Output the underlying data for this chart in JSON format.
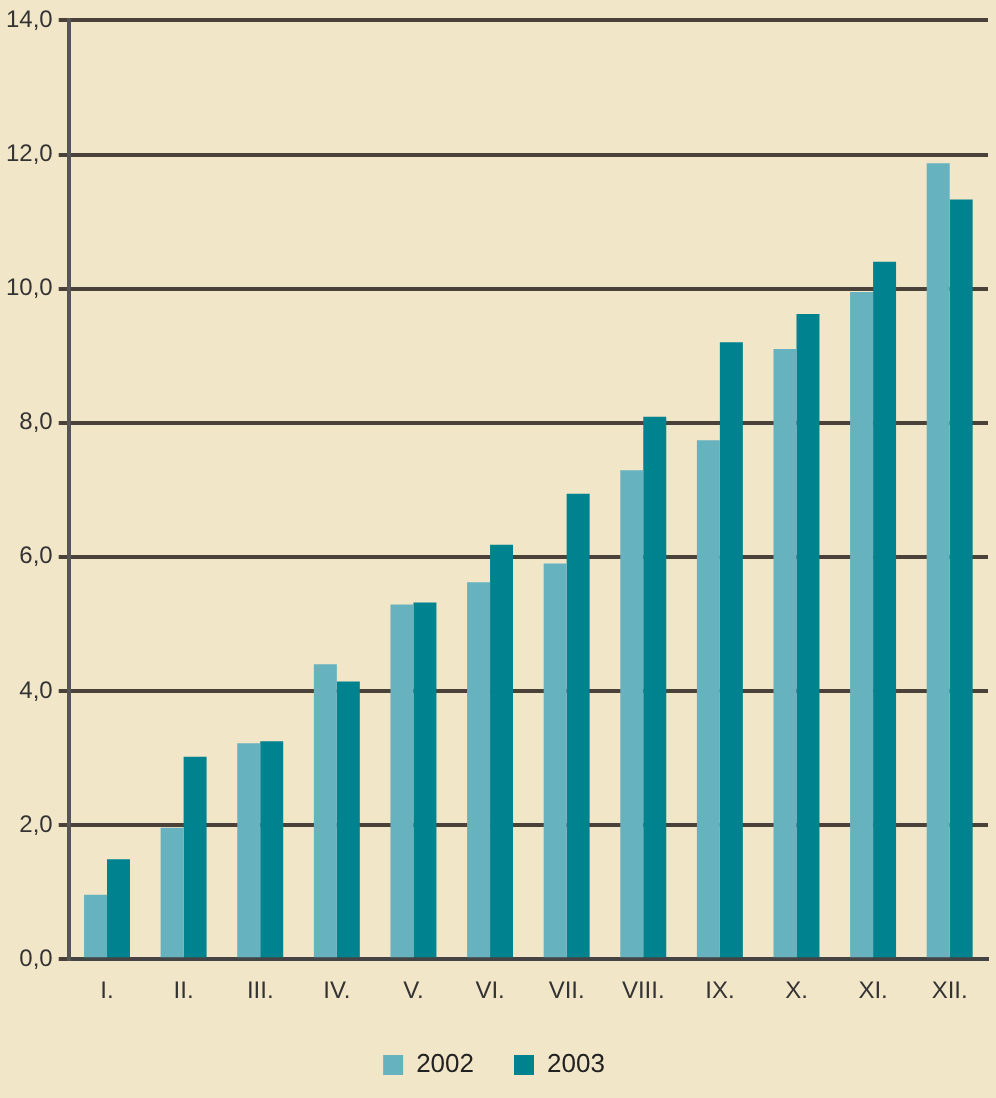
{
  "chart_data": {
    "type": "bar",
    "categories": [
      "I.",
      "II.",
      "III.",
      "IV.",
      "V.",
      "VI.",
      "VII.",
      "VIII.",
      "IX.",
      "X.",
      "XI.",
      "XII."
    ],
    "series": [
      {
        "name": "2002",
        "color": "#66b2bf",
        "values": [
          0.96,
          1.96,
          3.22,
          4.4,
          5.29,
          5.62,
          5.9,
          7.29,
          7.74,
          9.1,
          9.95,
          11.87
        ]
      },
      {
        "name": "2003",
        "color": "#00838f",
        "values": [
          1.49,
          3.02,
          3.25,
          4.14,
          5.32,
          6.18,
          6.94,
          8.09,
          9.2,
          9.62,
          10.4,
          11.33
        ]
      }
    ],
    "ylim": [
      0,
      14
    ],
    "yticks": [
      {
        "value": 0,
        "label": "0,0"
      },
      {
        "value": 2,
        "label": "2,0"
      },
      {
        "value": 4,
        "label": "4,0"
      },
      {
        "value": 6,
        "label": "6,0"
      },
      {
        "value": 8,
        "label": "8,0"
      },
      {
        "value": 10,
        "label": "10,0"
      },
      {
        "value": 12,
        "label": "12,0"
      },
      {
        "value": 14,
        "label": "14,0"
      }
    ],
    "grid": "y",
    "legend": "bottom"
  }
}
